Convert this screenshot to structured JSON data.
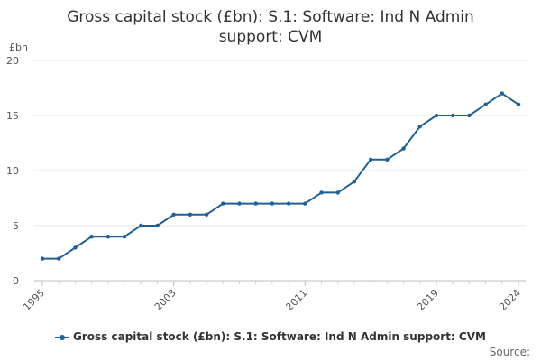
{
  "chart_data": {
    "type": "line",
    "title": "Gross capital stock (£bn): S.1: Software: Ind N Admin support: CVM",
    "ylabel": "£bn",
    "xlabel": "",
    "ylim": [
      0,
      20
    ],
    "yticks": [
      0,
      5,
      10,
      15,
      20
    ],
    "xlim": [
      1995,
      2024
    ],
    "xticks": [
      1995,
      2003,
      2011,
      2019,
      2024
    ],
    "grid": "horizontal",
    "legend_position": "bottom",
    "series": [
      {
        "name": "Gross capital stock (£bn): S.1: Software: Ind N Admin support: CVM",
        "color": "#206095",
        "x": [
          1995,
          1996,
          1997,
          1998,
          1999,
          2000,
          2001,
          2002,
          2003,
          2004,
          2005,
          2006,
          2007,
          2008,
          2009,
          2010,
          2011,
          2012,
          2013,
          2014,
          2015,
          2016,
          2017,
          2018,
          2019,
          2020,
          2021,
          2022,
          2023,
          2024
        ],
        "values": [
          2,
          2,
          3,
          4,
          4,
          4,
          5,
          5,
          6,
          6,
          6,
          7,
          7,
          7,
          7,
          7,
          7,
          8,
          8,
          9,
          11,
          11,
          12,
          14,
          15,
          15,
          15,
          16,
          17,
          16
        ]
      }
    ]
  },
  "source_label": "Source:"
}
